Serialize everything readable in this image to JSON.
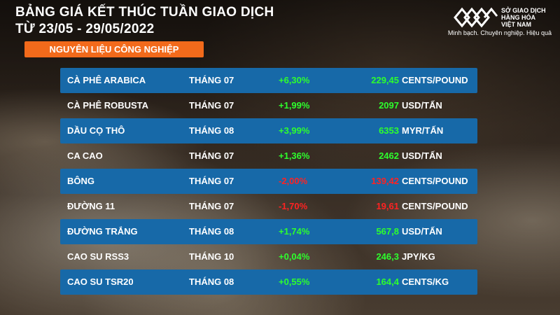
{
  "header": {
    "title_line1": "BẢNG GIÁ KẾT THÚC TUẦN GIAO DỊCH",
    "title_line2": "TỪ 23/05 - 29/05/2022",
    "category": "NGUYÊN LIỆU CÔNG NGHIỆP"
  },
  "logo": {
    "line1": "SỞ GIAO DỊCH",
    "line2": "HÀNG HÓA",
    "line3": "VIỆT NAM",
    "slogan": "Minh bạch. Chuyên nghiệp. Hiệu quả"
  },
  "colors": {
    "up": "#2dff2d",
    "down": "#ff2222",
    "row_blue": "#1769a8",
    "category_bg": "#f26a1b"
  },
  "rows": [
    {
      "name": "CÀ PHÊ ARABICA",
      "month": "THÁNG 07",
      "change": "+6,30%",
      "price": "229,45",
      "unit": "CENTS/POUND",
      "direction": "up"
    },
    {
      "name": "CÀ PHÊ ROBUSTA",
      "month": "THÁNG 07",
      "change": "+1,99%",
      "price": "2097",
      "unit": "USD/TẤN",
      "direction": "up"
    },
    {
      "name": "DẦU CỌ THÔ",
      "month": "THÁNG 08",
      "change": "+3,99%",
      "price": "6353",
      "unit": "MYR/TẤN",
      "direction": "up"
    },
    {
      "name": "CA CAO",
      "month": "THÁNG 07",
      "change": "+1,36%",
      "price": "2462",
      "unit": "USD/TẤN",
      "direction": "up"
    },
    {
      "name": "BÔNG",
      "month": "THÁNG 07",
      "change": "-2,00%",
      "price": "139,42",
      "unit": "CENTS/POUND",
      "direction": "down"
    },
    {
      "name": "ĐƯỜNG 11",
      "month": "THÁNG 07",
      "change": "-1,70%",
      "price": "19,61",
      "unit": "CENTS/POUND",
      "direction": "down"
    },
    {
      "name": "ĐƯỜNG TRẮNG",
      "month": "THÁNG 08",
      "change": "+1,74%",
      "price": "567,8",
      "unit": "USD/TẤN",
      "direction": "up"
    },
    {
      "name": "CAO SU RSS3",
      "month": "THÁNG 10",
      "change": "+0,04%",
      "price": "246,3",
      "unit": "JPY/KG",
      "direction": "up"
    },
    {
      "name": "CAO SU TSR20",
      "month": "THÁNG 08",
      "change": "+0,55%",
      "price": "164,4",
      "unit": "CENTS/KG",
      "direction": "up"
    }
  ]
}
